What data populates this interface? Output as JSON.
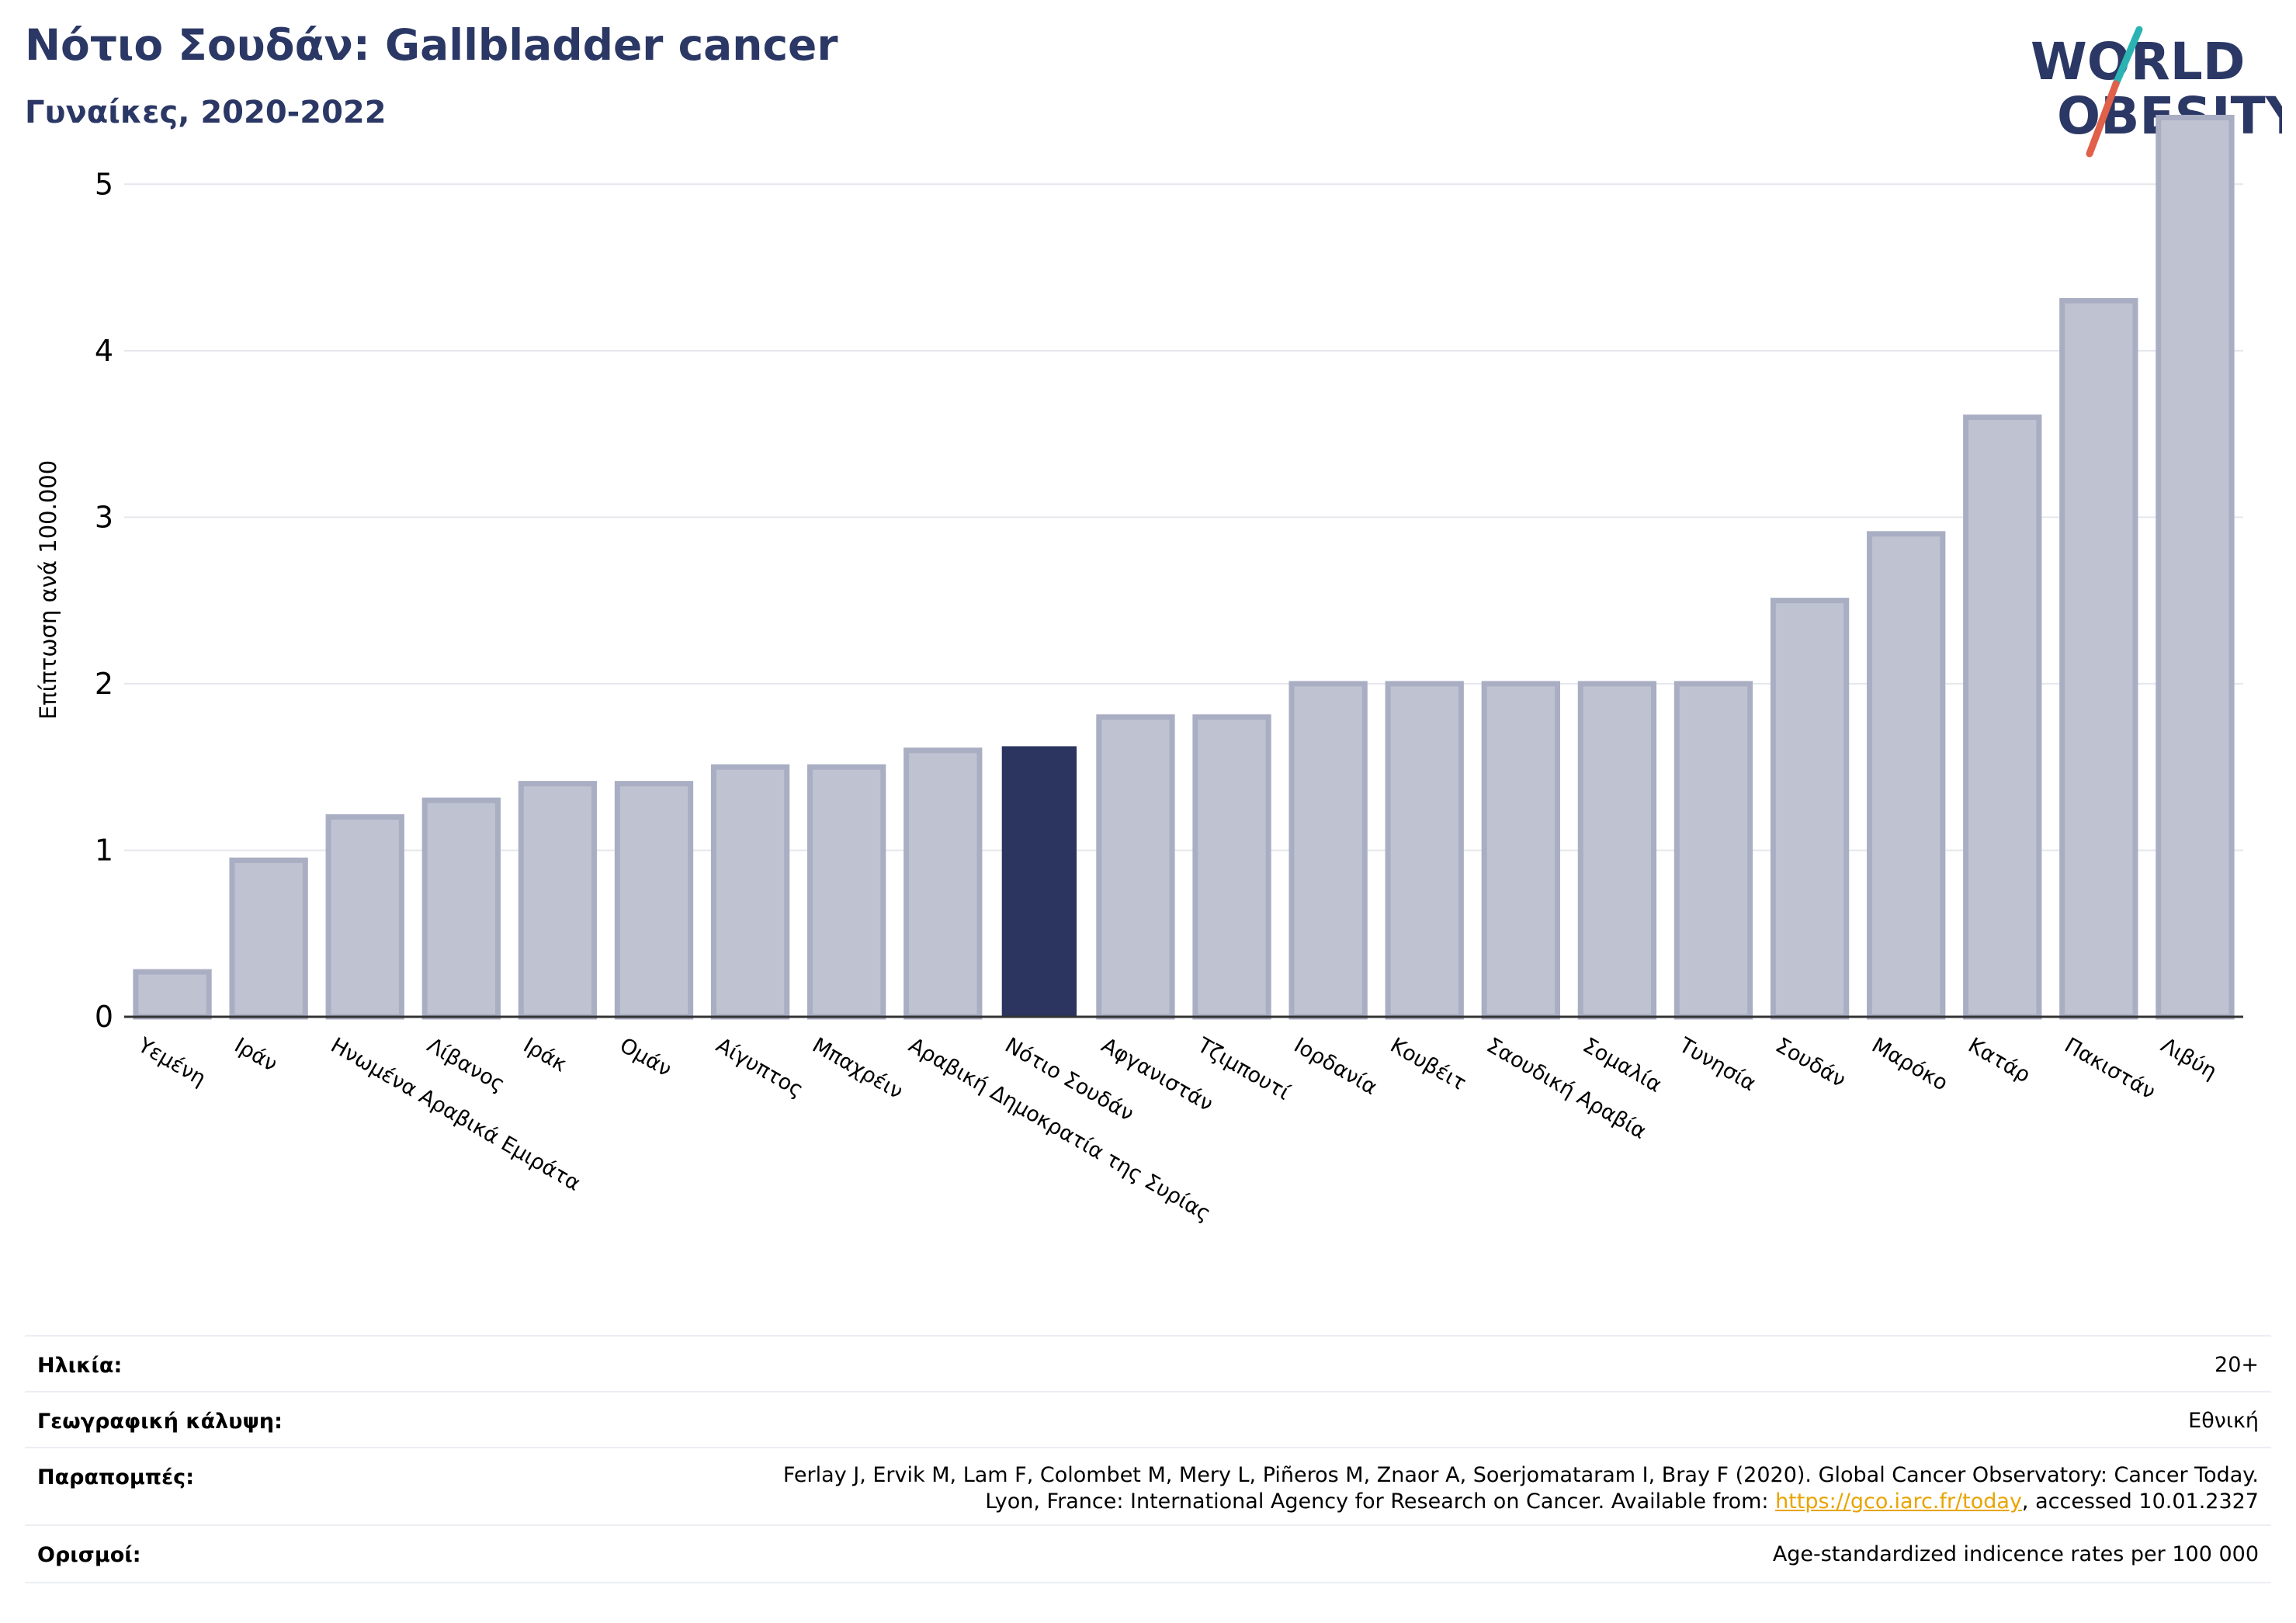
{
  "header": {
    "title": "Νότιο Σουδάν: Gallbladder cancer",
    "subtitle": "Γυναίκες, 2020-2022"
  },
  "logo": {
    "line1": "WORLD",
    "line2": "OBESITY",
    "colors": {
      "text": "#2b3865",
      "slash_top": "#2bb3b3",
      "slash_bottom": "#e0604a"
    }
  },
  "colors": {
    "bar": "#bfc2d0",
    "bar_border": "#a9aec3",
    "highlight": "#2b3560",
    "grid": "#e6e7ed",
    "axis": "#333333",
    "title": "#2b3865",
    "link": "#e8a400"
  },
  "chart_data": {
    "type": "bar",
    "ylabel": "Επίπτωση ανά 100.000",
    "ylim": [
      0,
      5.5
    ],
    "yticks": [
      0,
      1,
      2,
      3,
      4,
      5
    ],
    "grid": true,
    "highlight": "Νότιο Σουδάν",
    "categories": [
      "Υεμένη",
      "Ιράν",
      "Ηνωμένα Αραβικά Εμιράτα",
      "Λίβανος",
      "Ιράκ",
      "Ομάν",
      "Αίγυπτος",
      "Μπαχρέιν",
      "Αραβική Δημοκρατία της Συρίας",
      "Νότιο Σουδάν",
      "Αφγανιστάν",
      "Τζιμπουτί",
      "Ιορδανία",
      "Κουβέιτ",
      "Σαουδική Αραβία",
      "Σομαλία",
      "Τυνησία",
      "Σουδάν",
      "Μαρόκο",
      "Κατάρ",
      "Πακιστάν",
      "Λιβύη"
    ],
    "values": [
      0.27,
      0.94,
      1.2,
      1.3,
      1.4,
      1.4,
      1.5,
      1.5,
      1.6,
      1.62,
      1.8,
      1.8,
      2.0,
      2.0,
      2.0,
      2.0,
      2.0,
      2.5,
      2.9,
      3.6,
      4.3,
      5.4
    ]
  },
  "info": {
    "age_label": "Ηλικία:",
    "age_value": "20+",
    "coverage_label": "Γεωγραφική κάλυψη:",
    "coverage_value": "Εθνική",
    "refs_label": "Παραπομπές:",
    "refs_line1": "Ferlay J, Ervik M, Lam F, Colombet M, Mery L, Piñeros M, Znaor A, Soerjomataram I, Bray F (2020). Global Cancer Observatory: Cancer Today.",
    "refs_line2_prefix": "Lyon, France: International Agency for Research on Cancer. Available from: ",
    "refs_link": "https://gco.iarc.fr/today",
    "refs_line2_suffix": ", accessed 10.01.2327",
    "defs_label": "Ορισμοί:",
    "defs_value": "Age-standardized indicence rates per 100 000"
  }
}
